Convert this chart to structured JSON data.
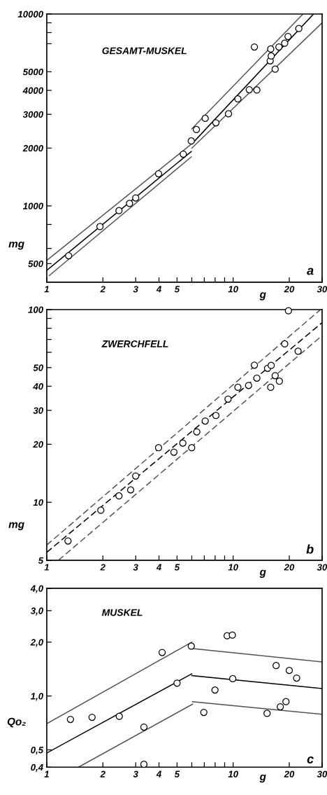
{
  "chart_data": [
    {
      "type": "scatter",
      "xlabel": "g",
      "ylabel": "mg",
      "log": "xy",
      "grid": false,
      "legend": false,
      "annotations": [
        "GESAMT-MUSKEL",
        "a"
      ],
      "xlim": [
        1,
        30
      ],
      "xticks": [
        1,
        2,
        3,
        4,
        5,
        {
          "value": 6,
          "label": null
        },
        {
          "value": 7,
          "label": null
        },
        {
          "value": 8,
          "label": null
        },
        {
          "value": 9,
          "label": null
        },
        10,
        20,
        30
      ],
      "ylim": [
        400,
        10000
      ],
      "yticks": [
        500,
        {
          "value": 600,
          "label": null
        },
        {
          "value": 800,
          "label": null
        },
        1000,
        2000,
        3000,
        4000,
        5000,
        {
          "value": 7000,
          "label": null
        },
        {
          "value": 8000,
          "label": null
        },
        {
          "value": 9000,
          "label": null
        },
        10000
      ],
      "series": [
        {
          "marker": "circle",
          "color": "#000000",
          "x": [
            1.31,
            1.93,
            2.44,
            2.78,
            3.0,
            3.98,
            5.4,
            5.96,
            6.35,
            7.08,
            8.08,
            9.44,
            10.6,
            12.2,
            13.4,
            13.0,
            15.8,
            16.0,
            15.9,
            16.8,
            17.6,
            18.9,
            19.7,
            22.5
          ],
          "values": [
            550,
            780,
            945,
            1030,
            1100,
            1470,
            1860,
            2180,
            2500,
            2860,
            2710,
            3020,
            3610,
            4030,
            4020,
            6730,
            5700,
            6040,
            6570,
            5160,
            6730,
            7040,
            7640,
            8400
          ]
        },
        {
          "type": "line",
          "line_style": "solid",
          "color": "#000000",
          "x": [
            1,
            5.96
          ],
          "values": [
            461,
            1920
          ]
        },
        {
          "type": "line",
          "line_style": "solid",
          "color": "#000000",
          "x": [
            6.0,
            27.0
          ],
          "values": [
            2100,
            10000
          ]
        },
        {
          "type": "line",
          "line_style": "solid",
          "color": "#555555",
          "x": [
            1,
            5.9
          ],
          "values": [
            520,
            2080
          ]
        },
        {
          "type": "line",
          "line_style": "solid",
          "color": "#555555",
          "x": [
            6.0,
            23.7
          ],
          "values": [
            2520,
            10000
          ]
        },
        {
          "type": "line",
          "line_style": "solid",
          "color": "#555555",
          "x": [
            1.03,
            5.96
          ],
          "values": [
            433,
            1800
          ]
        },
        {
          "type": "line",
          "line_style": "solid",
          "color": "#555555",
          "x": [
            6.0,
            30
          ],
          "values": [
            2000,
            8990
          ]
        }
      ]
    },
    {
      "type": "scatter",
      "xlabel": "g",
      "ylabel": "mg",
      "log": "xy",
      "grid": false,
      "legend": false,
      "annotations": [
        "ZWERCHFELL",
        "b"
      ],
      "xlim": [
        1,
        30
      ],
      "xticks": [
        1,
        2,
        3,
        4,
        5,
        {
          "value": 6,
          "label": null
        },
        {
          "value": 7,
          "label": null
        },
        {
          "value": 8,
          "label": null
        },
        {
          "value": 9,
          "label": null
        },
        10,
        20,
        30
      ],
      "ylim": [
        5,
        100
      ],
      "yticks": [
        5,
        10,
        20,
        30,
        40,
        50,
        {
          "value": 60,
          "label": null
        },
        {
          "value": 70,
          "label": null
        },
        {
          "value": 80,
          "label": null
        },
        {
          "value": 90,
          "label": null
        },
        100
      ],
      "series": [
        {
          "marker": "circle",
          "color": "#000000",
          "x": [
            1.3,
            1.95,
            2.44,
            2.82,
            3.0,
            3.98,
            4.81,
            5.37,
            5.99,
            6.38,
            7.08,
            8.08,
            9.39,
            10.6,
            12.1,
            13.0,
            13.4,
            15.3,
            16.0,
            15.9,
            16.8,
            17.7,
            18.9,
            19.8,
            22.3
          ],
          "values": [
            6.3,
            9.1,
            10.8,
            11.6,
            13.7,
            19.2,
            18.2,
            20.3,
            19.2,
            23.2,
            26.4,
            28.2,
            34.3,
            39.5,
            40.4,
            51.5,
            44.1,
            49.6,
            51.3,
            39.5,
            45.4,
            42.5,
            66.4,
            98.6,
            60.8
          ]
        },
        {
          "type": "line",
          "line_style": "dashed",
          "color": "#000000",
          "x": [
            1,
            30
          ],
          "values": [
            5.5,
            85.5
          ]
        },
        {
          "type": "line",
          "line_style": "dashed",
          "color": "#555555",
          "x": [
            1,
            29.4
          ],
          "values": [
            6.0,
            100
          ]
        },
        {
          "type": "line",
          "line_style": "dashed",
          "color": "#555555",
          "x": [
            1.155,
            30
          ],
          "values": [
            5,
            73.3
          ]
        }
      ]
    },
    {
      "type": "scatter",
      "xlabel": "g",
      "ylabel": "Qo₂",
      "log": "xy",
      "grid": false,
      "legend": false,
      "annotations": [
        "MUSKEL",
        "c"
      ],
      "xlim": [
        1,
        30
      ],
      "xticks": [
        1,
        2,
        3,
        4,
        5,
        {
          "value": 6,
          "label": null
        },
        {
          "value": 7,
          "label": null
        },
        {
          "value": 8,
          "label": null
        },
        {
          "value": 9,
          "label": null
        },
        10,
        20,
        30
      ],
      "ylim": [
        0.4,
        4.0
      ],
      "yticks": [
        {
          "value": 0.4,
          "label": "0,4"
        },
        {
          "value": 0.5,
          "label": "0,5"
        },
        {
          "value": 1.0,
          "label": "1,0"
        },
        {
          "value": 2.0,
          "label": "2,0"
        },
        {
          "value": 3.0,
          "label": "3,0"
        },
        {
          "value": 4.0,
          "label": "4,0"
        }
      ],
      "series": [
        {
          "marker": "circle",
          "color": "#000000",
          "x": [
            1.34,
            1.75,
            2.45,
            3.32,
            3.32,
            4.16,
            5.0,
            5.96,
            6.96,
            7.99,
            9.28,
            9.9,
            9.95,
            15.2,
            17.0,
            17.9,
            19.2,
            20.0,
            21.9
          ],
          "values": [
            0.74,
            0.76,
            0.77,
            0.67,
            0.415,
            1.75,
            1.18,
            1.9,
            0.81,
            1.08,
            2.17,
            2.19,
            1.25,
            0.8,
            1.48,
            0.87,
            0.93,
            1.39,
            1.26
          ]
        },
        {
          "type": "line",
          "line_style": "solid",
          "color": "#000000",
          "x": [
            1,
            6.0
          ],
          "values": [
            0.48,
            1.33
          ]
        },
        {
          "type": "line",
          "line_style": "solid",
          "color": "#000000",
          "x": [
            6.0,
            30
          ],
          "values": [
            1.3,
            1.1
          ]
        },
        {
          "type": "line",
          "line_style": "solid",
          "color": "#555555",
          "x": [
            1,
            6.0
          ],
          "values": [
            0.7,
            2.0
          ]
        },
        {
          "type": "line",
          "line_style": "solid",
          "color": "#555555",
          "x": [
            6.1,
            30
          ],
          "values": [
            1.84,
            1.55
          ]
        },
        {
          "type": "line",
          "line_style": "solid",
          "color": "#555555",
          "x": [
            1.48,
            6.05
          ],
          "values": [
            0.4,
            0.9
          ]
        },
        {
          "type": "line",
          "line_style": "solid",
          "color": "#555555",
          "x": [
            6.05,
            30
          ],
          "values": [
            0.93,
            0.79
          ]
        }
      ]
    }
  ]
}
